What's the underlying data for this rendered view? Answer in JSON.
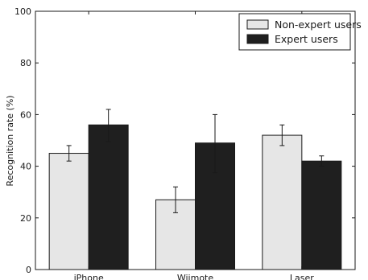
{
  "chart_data": {
    "type": "bar",
    "categories": [
      "iPhone",
      "Wiimote",
      "Laser"
    ],
    "series": [
      {
        "name": "Non-expert users",
        "values": [
          45,
          27,
          52
        ],
        "error_low": [
          42,
          22,
          48
        ],
        "error_high": [
          48,
          32,
          56
        ],
        "color": "#e6e6e6"
      },
      {
        "name": "Expert users",
        "values": [
          56,
          49,
          42
        ],
        "error_low": [
          49.5,
          37.5,
          40
        ],
        "error_high": [
          62,
          60,
          44
        ],
        "color": "#1f1f1f"
      }
    ],
    "title": "",
    "xlabel": "",
    "ylabel": "Recognition rate (%)",
    "ylim": [
      0,
      100
    ],
    "yticks": [
      "0",
      "20",
      "40",
      "60",
      "80",
      "100"
    ],
    "grid": false,
    "legend_position": "top-right",
    "error_bars": true
  }
}
